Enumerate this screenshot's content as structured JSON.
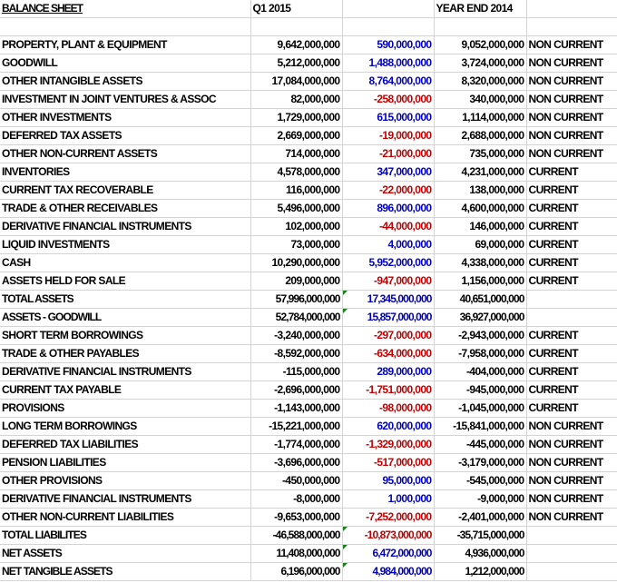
{
  "header": {
    "title": "BALANCE SHEET",
    "col_q1": "Q1 2015",
    "col_change": "",
    "col_ye": "YEAR END 2014",
    "col_type": ""
  },
  "colors": {
    "positive_change": "#0000c0",
    "negative_change": "#c00000",
    "error_flag": "#1a7f1a"
  },
  "rows": [
    {
      "label": "PROPERTY, PLANT & EQUIPMENT",
      "q1": "9,642,000,000",
      "change": "590,000,000",
      "ye": "9,052,000,000",
      "type": "NON CURRENT"
    },
    {
      "label": "GOODWILL",
      "q1": "5,212,000,000",
      "change": "1,488,000,000",
      "ye": "3,724,000,000",
      "type": "NON CURRENT"
    },
    {
      "label": "OTHER INTANGIBLE ASSETS",
      "q1": "17,084,000,000",
      "change": "8,764,000,000",
      "ye": "8,320,000,000",
      "type": "NON CURRENT"
    },
    {
      "label": "INVESTMENT IN JOINT VENTURES & ASSOC",
      "q1": "82,000,000",
      "change": "-258,000,000",
      "ye": "340,000,000",
      "type": "NON CURRENT"
    },
    {
      "label": "OTHER INVESTMENTS",
      "q1": "1,729,000,000",
      "change": "615,000,000",
      "ye": "1,114,000,000",
      "type": "NON CURRENT"
    },
    {
      "label": "DEFERRED TAX ASSETS",
      "q1": "2,669,000,000",
      "change": "-19,000,000",
      "ye": "2,688,000,000",
      "type": "NON CURRENT"
    },
    {
      "label": "OTHER NON-CURRENT ASSETS",
      "q1": "714,000,000",
      "change": "-21,000,000",
      "ye": "735,000,000",
      "type": "NON CURRENT"
    },
    {
      "label": "INVENTORIES",
      "q1": "4,578,000,000",
      "change": "347,000,000",
      "ye": "4,231,000,000",
      "type": "CURRENT"
    },
    {
      "label": "CURRENT TAX RECOVERABLE",
      "q1": "116,000,000",
      "change": "-22,000,000",
      "ye": "138,000,000",
      "type": "CURRENT"
    },
    {
      "label": "TRADE & OTHER RECEIVABLES",
      "q1": "5,496,000,000",
      "change": "896,000,000",
      "ye": "4,600,000,000",
      "type": "CURRENT"
    },
    {
      "label": "DERIVATIVE FINANCIAL INSTRUMENTS",
      "q1": "102,000,000",
      "change": "-44,000,000",
      "ye": "146,000,000",
      "type": "CURRENT"
    },
    {
      "label": "LIQUID INVESTMENTS",
      "q1": "73,000,000",
      "change": "4,000,000",
      "ye": "69,000,000",
      "type": "CURRENT"
    },
    {
      "label": "CASH",
      "q1": "10,290,000,000",
      "change": "5,952,000,000",
      "ye": "4,338,000,000",
      "type": "CURRENT"
    },
    {
      "label": "ASSETS HELD FOR SALE",
      "q1": "209,000,000",
      "change": "-947,000,000",
      "ye": "1,156,000,000",
      "type": "CURRENT"
    },
    {
      "label": "TOTAL ASSETS",
      "q1": "57,996,000,000",
      "change": "17,345,000,000",
      "ye": "40,651,000,000",
      "type": "",
      "total": true
    },
    {
      "label": "ASSETS - GOODWILL",
      "q1": "52,784,000,000",
      "change": "15,857,000,000",
      "ye": "36,927,000,000",
      "type": "",
      "total": true
    },
    {
      "label": "SHORT TERM BORROWINGS",
      "q1": "-3,240,000,000",
      "change": "-297,000,000",
      "ye": "-2,943,000,000",
      "type": "CURRENT"
    },
    {
      "label": "TRADE & OTHER PAYABLES",
      "q1": "-8,592,000,000",
      "change": "-634,000,000",
      "ye": "-7,958,000,000",
      "type": "CURRENT"
    },
    {
      "label": "DERIVATIVE FINANCIAL INSTRUMENTS",
      "q1": "-115,000,000",
      "change": "289,000,000",
      "ye": "-404,000,000",
      "type": "CURRENT"
    },
    {
      "label": "CURRENT TAX PAYABLE",
      "q1": "-2,696,000,000",
      "change": "-1,751,000,000",
      "ye": "-945,000,000",
      "type": "CURRENT"
    },
    {
      "label": "PROVISIONS",
      "q1": "-1,143,000,000",
      "change": "-98,000,000",
      "ye": "-1,045,000,000",
      "type": "CURRENT"
    },
    {
      "label": "LONG TERM BORROWINGS",
      "q1": "-15,221,000,000",
      "change": "620,000,000",
      "ye": "-15,841,000,000",
      "type": "NON CURRENT"
    },
    {
      "label": "DEFERRED TAX LIABILITIES",
      "q1": "-1,774,000,000",
      "change": "-1,329,000,000",
      "ye": "-445,000,000",
      "type": "NON CURRENT"
    },
    {
      "label": "PENSION LIABILITIES",
      "q1": "-3,696,000,000",
      "change": "-517,000,000",
      "ye": "-3,179,000,000",
      "type": "NON CURRENT"
    },
    {
      "label": "OTHER PROVISIONS",
      "q1": "-450,000,000",
      "change": "95,000,000",
      "ye": "-545,000,000",
      "type": "NON CURRENT"
    },
    {
      "label": "DERIVATIVE FINANCIAL INSTRUMENTS",
      "q1": "-8,000,000",
      "change": "1,000,000",
      "ye": "-9,000,000",
      "type": "NON CURRENT"
    },
    {
      "label": "OTHER NON-CURRENT LIABILITIES",
      "q1": "-9,653,000,000",
      "change": "-7,252,000,000",
      "ye": "-2,401,000,000",
      "type": "NON CURRENT"
    },
    {
      "label": "TOTAL LIABILITES",
      "q1": "-46,588,000,000",
      "change": "-10,873,000,000",
      "ye": "-35,715,000,000",
      "type": "",
      "total": true
    },
    {
      "label": "NET ASSETS",
      "q1": "11,408,000,000",
      "change": "6,472,000,000",
      "ye": "4,936,000,000",
      "type": "",
      "total": true
    },
    {
      "label": "NET TANGIBLE ASSETS",
      "q1": "6,196,000,000",
      "change": "4,984,000,000",
      "ye": "1,212,000,000",
      "type": "",
      "total": true
    }
  ]
}
